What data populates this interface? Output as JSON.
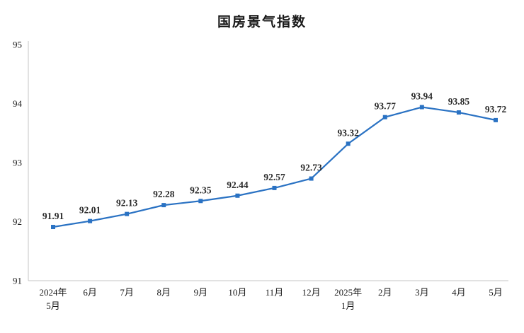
{
  "page": {
    "background": "#ffffff"
  },
  "chart_data": {
    "type": "line",
    "title": "国房景气指数",
    "categories": [
      "2024年\n5月",
      "6月",
      "7月",
      "8月",
      "9月",
      "10月",
      "11月",
      "12月",
      "2025年\n1月",
      "2月",
      "3月",
      "4月",
      "5月"
    ],
    "values": [
      91.91,
      92.01,
      92.13,
      92.28,
      92.35,
      92.44,
      92.57,
      92.73,
      93.32,
      93.77,
      93.94,
      93.85,
      93.72
    ],
    "ylim": [
      91,
      95
    ],
    "yticks": [
      91,
      92,
      93,
      94,
      95
    ],
    "xlabel": "",
    "ylabel": "",
    "grid": false,
    "legend": "none",
    "line_color": "#2a72c3",
    "marker": "square",
    "label_color": "#2b2b2b",
    "axis_color": "#c6c6c6",
    "tick_color": "#1a1a1a"
  }
}
